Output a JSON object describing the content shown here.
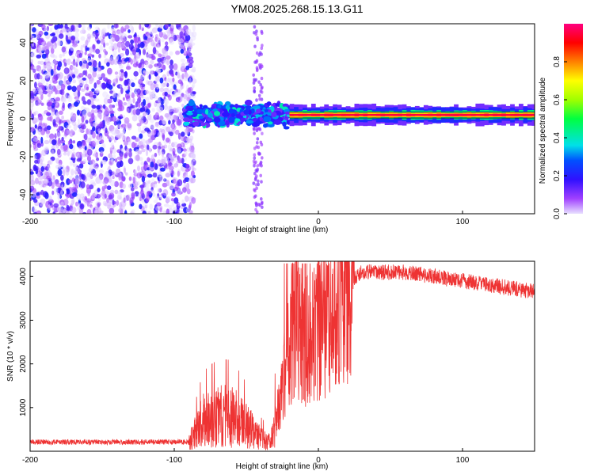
{
  "title": "YM08.2025.268.15.13.G11",
  "chart_data": [
    {
      "type": "heatmap",
      "name": "spectrogram",
      "xlabel": "Height of straight line (km)",
      "ylabel": "Frequency (Hz)",
      "xlim": [
        -200,
        150
      ],
      "ylim": [
        -50,
        50
      ],
      "xticks": [
        -200,
        -100,
        0,
        100
      ],
      "yticks": [
        40,
        20,
        0,
        -20,
        -40
      ],
      "colorbar": {
        "label": "Normalized spectral amplitude",
        "range": [
          0,
          1
        ],
        "ticks": [
          0.0,
          0.2,
          0.4,
          0.6,
          0.8
        ]
      },
      "description_regions": [
        {
          "x_range": [
            -200,
            -90
          ],
          "pattern": "noise",
          "amplitude": [
            0.05,
            0.25
          ]
        },
        {
          "x_range": [
            -92,
            -20
          ],
          "pattern": "signal near 0 Hz",
          "freq_range": [
            -8,
            10
          ],
          "amplitude": [
            0.2,
            0.6
          ]
        },
        {
          "x_range": [
            -20,
            150
          ],
          "pattern": "strong carrier",
          "freq_center": 2,
          "amplitude": [
            0.7,
            1.0
          ]
        }
      ]
    },
    {
      "type": "line",
      "name": "snr",
      "xlabel": "Height of straight line (km)",
      "ylabel": "SNR (10 * v/v)",
      "xlim": [
        -200,
        150
      ],
      "ylim": [
        0,
        4350
      ],
      "xticks": [
        -200,
        -100,
        0,
        100
      ],
      "yticks": [
        1000,
        2000,
        3000,
        4000
      ],
      "color": "#ee3333",
      "envelope": [
        {
          "x": -200,
          "y": 200
        },
        {
          "x": -90,
          "y": 200
        },
        {
          "x": -80,
          "y": 700
        },
        {
          "x": -70,
          "y": 800
        },
        {
          "x": -60,
          "y": 800
        },
        {
          "x": -50,
          "y": 600
        },
        {
          "x": -40,
          "y": 300
        },
        {
          "x": -33,
          "y": 200
        },
        {
          "x": -25,
          "y": 1500
        },
        {
          "x": -20,
          "y": 2500
        },
        {
          "x": -15,
          "y": 3000
        },
        {
          "x": -10,
          "y": 2500
        },
        {
          "x": 0,
          "y": 2800
        },
        {
          "x": 10,
          "y": 3200
        },
        {
          "x": 20,
          "y": 3800
        },
        {
          "x": 30,
          "y": 4100
        },
        {
          "x": 60,
          "y": 4100
        },
        {
          "x": 90,
          "y": 3950
        },
        {
          "x": 120,
          "y": 3800
        },
        {
          "x": 150,
          "y": 3650
        }
      ]
    }
  ]
}
